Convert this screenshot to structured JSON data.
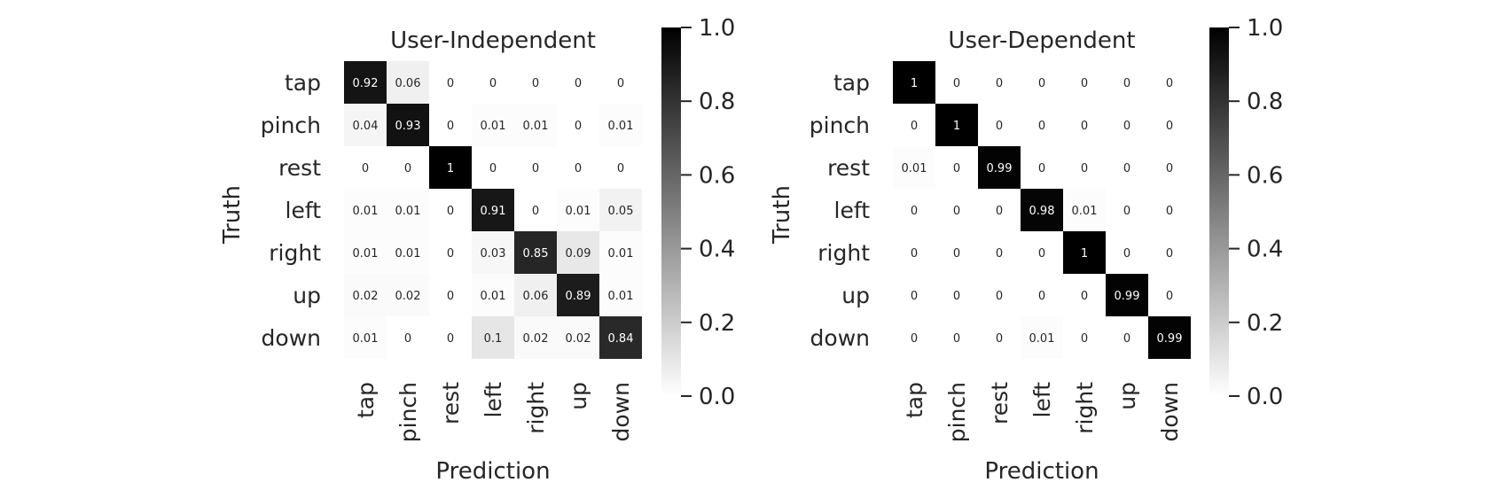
{
  "chart_data": [
    {
      "type": "heatmap",
      "title": "User-Independent",
      "xlabel": "Prediction",
      "ylabel": "Truth",
      "x_categories": [
        "tap",
        "pinch",
        "rest",
        "left",
        "right",
        "up",
        "down"
      ],
      "y_categories": [
        "tap",
        "pinch",
        "rest",
        "left",
        "right",
        "up",
        "down"
      ],
      "values": [
        [
          0.92,
          0.06,
          0,
          0,
          0,
          0,
          0
        ],
        [
          0.04,
          0.93,
          0,
          0.01,
          0.01,
          0,
          0.01
        ],
        [
          0,
          0,
          1,
          0,
          0,
          0,
          0
        ],
        [
          0.01,
          0.01,
          0,
          0.91,
          0,
          0.01,
          0.05
        ],
        [
          0.01,
          0.01,
          0,
          0.03,
          0.85,
          0.09,
          0.01
        ],
        [
          0.02,
          0.02,
          0,
          0.01,
          0.06,
          0.89,
          0.01
        ],
        [
          0.01,
          0,
          0,
          0.1,
          0.02,
          0.02,
          0.84
        ]
      ],
      "colorbar": {
        "range": [
          0.0,
          1.0
        ],
        "ticks": [
          "0.0",
          "0.2",
          "0.4",
          "0.6",
          "0.8",
          "1.0"
        ],
        "colormap": "white-to-black"
      }
    },
    {
      "type": "heatmap",
      "title": "User-Dependent",
      "xlabel": "Prediction",
      "ylabel": "Truth",
      "x_categories": [
        "tap",
        "pinch",
        "rest",
        "left",
        "right",
        "up",
        "down"
      ],
      "y_categories": [
        "tap",
        "pinch",
        "rest",
        "left",
        "right",
        "up",
        "down"
      ],
      "values": [
        [
          1,
          0,
          0,
          0,
          0,
          0,
          0
        ],
        [
          0,
          1,
          0,
          0,
          0,
          0,
          0
        ],
        [
          0.01,
          0,
          0.99,
          0,
          0,
          0,
          0
        ],
        [
          0,
          0,
          0,
          0.98,
          0.01,
          0,
          0
        ],
        [
          0,
          0,
          0,
          0,
          1,
          0,
          0
        ],
        [
          0,
          0,
          0,
          0,
          0,
          0.99,
          0
        ],
        [
          0,
          0,
          0,
          0.01,
          0,
          0,
          0.99
        ]
      ],
      "colorbar": {
        "range": [
          0.0,
          1.0
        ],
        "ticks": [
          "0.0",
          "0.2",
          "0.4",
          "0.6",
          "0.8",
          "1.0"
        ],
        "colormap": "white-to-black"
      }
    }
  ]
}
